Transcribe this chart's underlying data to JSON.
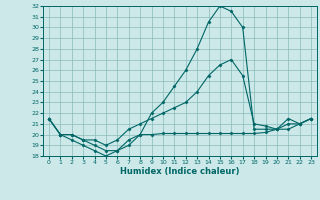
{
  "xlabel": "Humidex (Indice chaleur)",
  "ylabel": "",
  "bg_color": "#cce8e8",
  "grid_color": "#88bbbb",
  "line_color": "#006666",
  "marker_color": "#006666",
  "xlim": [
    -0.5,
    23.5
  ],
  "ylim": [
    18,
    32
  ],
  "yticks": [
    18,
    19,
    20,
    21,
    22,
    23,
    24,
    25,
    26,
    27,
    28,
    29,
    30,
    31,
    32
  ],
  "xticks": [
    0,
    1,
    2,
    3,
    4,
    5,
    6,
    7,
    8,
    9,
    10,
    11,
    12,
    13,
    14,
    15,
    16,
    17,
    18,
    19,
    20,
    21,
    22,
    23
  ],
  "series": [
    [
      21.5,
      20.0,
      19.5,
      19.0,
      18.5,
      18.0,
      18.5,
      19.0,
      20.0,
      22.0,
      23.0,
      24.5,
      26.0,
      28.0,
      30.5,
      32.0,
      31.5,
      30.0,
      20.5,
      20.5,
      20.5,
      21.5,
      21.0,
      21.5
    ],
    [
      21.5,
      20.0,
      20.0,
      19.5,
      19.0,
      18.5,
      18.5,
      19.5,
      20.0,
      20.0,
      20.1,
      20.1,
      20.1,
      20.1,
      20.1,
      20.1,
      20.1,
      20.1,
      20.1,
      20.2,
      20.5,
      20.5,
      21.0,
      21.5
    ],
    [
      21.5,
      20.0,
      20.0,
      19.5,
      19.5,
      19.0,
      19.5,
      20.5,
      21.0,
      21.5,
      22.0,
      22.5,
      23.0,
      24.0,
      25.5,
      26.5,
      27.0,
      25.5,
      21.0,
      20.8,
      20.5,
      21.0,
      21.0,
      21.5
    ]
  ]
}
